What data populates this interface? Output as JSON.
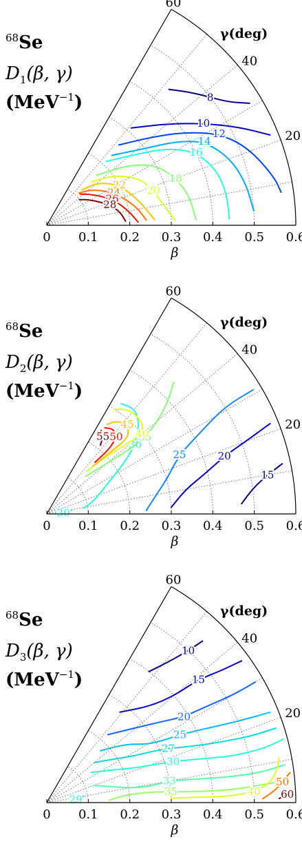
{
  "chart_data": [
    {
      "type": "contour",
      "nucleus": {
        "mass": "68",
        "symbol": "Se"
      },
      "quantity": {
        "symbol": "D",
        "index": "1",
        "args": "(β, γ)"
      },
      "units": {
        "open": "(MeV",
        "power": "−1",
        "close": ")"
      },
      "xlabel": "β",
      "gamma_label": "γ(deg)",
      "beta_range": [
        0,
        0.6
      ],
      "gamma_range": [
        0,
        60
      ],
      "beta_ticks": [
        "0",
        "0.1",
        "0.2",
        "0.3",
        "0.4",
        "0.5",
        "0.6"
      ],
      "gamma_ticks": [
        "0",
        "20",
        "40",
        "60"
      ],
      "grid": true,
      "colors": {
        "lowest": "#00007f",
        "highest": "#7f0000"
      },
      "contours": [
        {
          "level": "8",
          "color": "#00007f",
          "points": [
            [
              0.44,
              48
            ],
            [
              0.47,
              43
            ],
            [
              0.5,
              38
            ],
            [
              0.53,
              34
            ],
            [
              0.57,
              31
            ]
          ]
        },
        {
          "level": "10",
          "color": "#0000cd",
          "points": [
            [
              0.31,
              49
            ],
            [
              0.38,
              40
            ],
            [
              0.45,
              33
            ],
            [
              0.52,
              27
            ],
            [
              0.58,
              22
            ]
          ]
        },
        {
          "level": "12",
          "color": "#0044ff",
          "points": [
            [
              0.26,
              48
            ],
            [
              0.33,
              40
            ],
            [
              0.4,
              34
            ],
            [
              0.47,
              28
            ],
            [
              0.52,
              21
            ],
            [
              0.56,
              12
            ],
            [
              0.57,
              8
            ]
          ]
        },
        {
          "level": "14",
          "color": "#00aaff",
          "points": [
            [
              0.23,
              47
            ],
            [
              0.3,
              38
            ],
            [
              0.37,
              33
            ],
            [
              0.43,
              28
            ],
            [
              0.47,
              20
            ],
            [
              0.49,
              12
            ],
            [
              0.5,
              4
            ]
          ]
        },
        {
          "level": "16",
          "color": "#22ffdd",
          "points": [
            [
              0.21,
              47
            ],
            [
              0.28,
              38
            ],
            [
              0.35,
              32
            ],
            [
              0.4,
              26
            ],
            [
              0.43,
              18
            ],
            [
              0.44,
              10
            ],
            [
              0.44,
              2
            ]
          ]
        },
        {
          "level": "18",
          "color": "#88ff77",
          "points": [
            [
              0.17,
              45
            ],
            [
              0.24,
              37
            ],
            [
              0.3,
              29
            ],
            [
              0.33,
              20
            ],
            [
              0.35,
              12
            ],
            [
              0.36,
              2
            ]
          ]
        },
        {
          "level": "20",
          "color": "#ddff22",
          "points": [
            [
              0.15,
              44
            ],
            [
              0.2,
              37
            ],
            [
              0.25,
              27
            ],
            [
              0.27,
              18
            ],
            [
              0.29,
              8
            ],
            [
              0.31,
              2
            ]
          ]
        },
        {
          "level": "22",
          "color": "#ffc400",
          "points": [
            [
              0.12,
              45
            ],
            [
              0.16,
              40
            ],
            [
              0.2,
              29
            ],
            [
              0.23,
              15
            ],
            [
              0.26,
              3
            ]
          ]
        },
        {
          "level": "24",
          "color": "#ff7700",
          "points": [
            [
              0.11,
              45
            ],
            [
              0.14,
              38
            ],
            [
              0.18,
              26
            ],
            [
              0.22,
              12
            ],
            [
              0.24,
              3
            ]
          ]
        },
        {
          "level": "26",
          "color": "#ee1100",
          "points": [
            [
              0.11,
              43
            ],
            [
              0.13,
              35
            ],
            [
              0.17,
              22
            ],
            [
              0.2,
              10
            ],
            [
              0.22,
              2
            ]
          ]
        },
        {
          "level": "28",
          "color": "#7f0000",
          "points": [
            [
              0.1,
              38
            ],
            [
              0.12,
              31
            ],
            [
              0.16,
              18
            ],
            [
              0.18,
              10
            ],
            [
              0.19,
              3
            ]
          ]
        }
      ]
    },
    {
      "type": "contour",
      "nucleus": {
        "mass": "68",
        "symbol": "Se"
      },
      "quantity": {
        "symbol": "D",
        "index": "2",
        "args": "(β, γ)"
      },
      "units": {
        "open": "(MeV",
        "power": "−1",
        "close": ")"
      },
      "xlabel": "β",
      "gamma_label": "γ(deg)",
      "beta_range": [
        0,
        0.6
      ],
      "gamma_range": [
        0,
        60
      ],
      "beta_ticks": [
        "0",
        "0.1",
        "0.2",
        "0.3",
        "0.4",
        "0.5",
        "0.6"
      ],
      "gamma_ticks": [
        "0",
        "20",
        "40",
        "60"
      ],
      "grid": true,
      "colors": {
        "lowest": "#00007f",
        "highest": "#7f0000"
      },
      "contours": [
        {
          "level": "15",
          "color": "#00007f",
          "points": [
            [
              0.47,
              3
            ],
            [
              0.5,
              7
            ],
            [
              0.54,
              10
            ],
            [
              0.58,
              12
            ]
          ]
        },
        {
          "level": "20",
          "color": "#0000cd",
          "points": [
            [
              0.3,
              3
            ],
            [
              0.34,
              10
            ],
            [
              0.39,
              14
            ],
            [
              0.45,
              18
            ],
            [
              0.51,
              20
            ],
            [
              0.58,
              22
            ]
          ]
        },
        {
          "level": "25",
          "color": "#1188ff",
          "points": [
            [
              0.24,
              2
            ],
            [
              0.26,
              8
            ],
            [
              0.3,
              16
            ],
            [
              0.35,
              24
            ],
            [
              0.42,
              28
            ],
            [
              0.5,
              31
            ],
            [
              0.58,
              31
            ]
          ]
        },
        {
          "level": "30",
          "color": "#22ffdd",
          "points": [
            [
              0.09,
              9
            ],
            [
              0.12,
              16
            ],
            [
              0.16,
              26
            ],
            [
              0.22,
              33
            ],
            [
              0.27,
              38
            ],
            [
              0.31,
              44
            ],
            [
              0.33,
              50
            ],
            [
              0.32,
              56
            ]
          ]
        },
        {
          "level": "35",
          "color": "#88ff77",
          "points": [
            [
              0.13,
              44
            ],
            [
              0.19,
              40
            ],
            [
              0.25,
              38
            ],
            [
              0.3,
              38
            ],
            [
              0.35,
              40
            ],
            [
              0.4,
              43
            ],
            [
              0.44,
              46
            ]
          ]
        },
        {
          "level": "40",
          "color": "#ddff22",
          "points": [
            [
              0.14,
              47
            ],
            [
              0.2,
              44
            ],
            [
              0.26,
              41
            ],
            [
              0.3,
              40
            ],
            [
              0.32,
              44
            ],
            [
              0.32,
              52
            ],
            [
              0.3,
              57
            ]
          ]
        },
        {
          "level": "45",
          "color": "#ffc400",
          "points": [
            [
              0.16,
              46
            ],
            [
              0.22,
              44
            ],
            [
              0.27,
              43
            ],
            [
              0.29,
              48
            ],
            [
              0.28,
              53
            ],
            [
              0.26,
              56
            ]
          ]
        },
        {
          "level": "50",
          "color": "#ee1100",
          "points": [
            [
              0.17,
              47
            ],
            [
              0.22,
              46
            ],
            [
              0.25,
              48
            ],
            [
              0.26,
              52
            ],
            [
              0.25,
              56
            ]
          ]
        },
        {
          "level": "55",
          "color": "#7f0000",
          "points": [
            [
              0.21,
              52
            ],
            [
              0.23,
              54
            ],
            [
              0.24,
              57
            ]
          ]
        },
        {
          "level": "30",
          "color": "#22ffdd",
          "points": [
            [
              0.02,
              2
            ],
            [
              0.04,
              4
            ],
            [
              0.06,
              8
            ]
          ]
        }
      ]
    },
    {
      "type": "contour",
      "nucleus": {
        "mass": "68",
        "symbol": "Se"
      },
      "quantity": {
        "symbol": "D",
        "index": "3",
        "args": "(β, γ)"
      },
      "units": {
        "open": "(MeV",
        "power": "−1",
        "close": ")"
      },
      "xlabel": "β",
      "gamma_label": "γ(deg)",
      "beta_range": [
        0,
        0.6
      ],
      "gamma_range": [
        0,
        60
      ],
      "beta_ticks": [
        "0",
        "0.1",
        "0.2",
        "0.3",
        "0.4",
        "0.5",
        "0.6"
      ],
      "gamma_ticks": [
        "0",
        "20",
        "40",
        "60"
      ],
      "grid": true,
      "colors": {
        "lowest": "#00007f",
        "highest": "#7f0000"
      },
      "contours": [
        {
          "level": "10",
          "color": "#00007f",
          "points": [
            [
              0.4,
              52
            ],
            [
              0.45,
              49
            ],
            [
              0.5,
              47
            ],
            [
              0.54,
              46
            ]
          ]
        },
        {
          "level": "15",
          "color": "#0000cd",
          "points": [
            [
              0.28,
              51
            ],
            [
              0.34,
              43
            ],
            [
              0.4,
              40
            ],
            [
              0.47,
              39
            ],
            [
              0.53,
              37
            ],
            [
              0.58,
              36
            ]
          ]
        },
        {
          "level": "20",
          "color": "#1166ff",
          "points": [
            [
              0.22,
              48
            ],
            [
              0.28,
              40
            ],
            [
              0.34,
              35
            ],
            [
              0.39,
              32
            ],
            [
              0.45,
              31
            ],
            [
              0.52,
              30
            ],
            [
              0.58,
              30
            ]
          ]
        },
        {
          "level": "25",
          "color": "#00bbff",
          "points": [
            [
              0.18,
              44
            ],
            [
              0.24,
              36
            ],
            [
              0.28,
              30
            ],
            [
              0.32,
              28
            ],
            [
              0.36,
              27
            ],
            [
              0.42,
              25
            ],
            [
              0.5,
              23
            ],
            [
              0.58,
              22
            ]
          ]
        },
        {
          "level": "27",
          "color": "#00dddd",
          "points": [
            [
              0.15,
              40
            ],
            [
              0.2,
              32
            ],
            [
              0.24,
              28
            ],
            [
              0.28,
              26
            ],
            [
              0.32,
              24
            ],
            [
              0.38,
              21
            ],
            [
              0.45,
              19
            ],
            [
              0.52,
              18
            ],
            [
              0.58,
              18
            ]
          ]
        },
        {
          "level": "30",
          "color": "#22ffdd",
          "points": [
            [
              0.13,
              34
            ],
            [
              0.18,
              26
            ],
            [
              0.22,
              22
            ],
            [
              0.26,
              20
            ],
            [
              0.32,
              18
            ],
            [
              0.38,
              16
            ],
            [
              0.46,
              14
            ],
            [
              0.54,
              14
            ],
            [
              0.59,
              15
            ]
          ]
        },
        {
          "level": "33",
          "color": "#55ffaa",
          "points": [
            [
              0.12,
              20
            ],
            [
              0.16,
              14
            ],
            [
              0.2,
              10
            ],
            [
              0.25,
              9
            ],
            [
              0.3,
              10
            ],
            [
              0.36,
              9
            ],
            [
              0.44,
              8
            ],
            [
              0.52,
              8
            ],
            [
              0.58,
              9
            ]
          ]
        },
        {
          "level": "35",
          "color": "#99ff66",
          "points": [
            [
              0.15,
              2
            ],
            [
              0.18,
              5
            ],
            [
              0.24,
              6
            ],
            [
              0.3,
              5
            ],
            [
              0.38,
              4
            ],
            [
              0.46,
              4
            ],
            [
              0.55,
              5
            ]
          ]
        },
        {
          "level": "40",
          "color": "#ddff22",
          "points": [
            [
              0.3,
              2
            ],
            [
              0.38,
              2
            ],
            [
              0.44,
              2
            ],
            [
              0.5,
              3
            ],
            [
              0.54,
              5
            ],
            [
              0.56,
              8
            ],
            [
              0.57,
              11
            ]
          ]
        },
        {
          "level": "50",
          "color": "#ff7700",
          "points": [
            [
              0.52,
              1
            ],
            [
              0.55,
              3
            ],
            [
              0.57,
              5
            ],
            [
              0.59,
              7
            ]
          ]
        },
        {
          "level": "60",
          "color": "#7f0000",
          "points": [
            [
              0.56,
              1
            ],
            [
              0.58,
              2
            ],
            [
              0.59,
              3
            ]
          ]
        },
        {
          "level": "29",
          "color": "#22ffdd",
          "points": [
            [
              0.06,
              2
            ],
            [
              0.07,
              6
            ],
            [
              0.09,
              10
            ]
          ]
        }
      ]
    }
  ]
}
